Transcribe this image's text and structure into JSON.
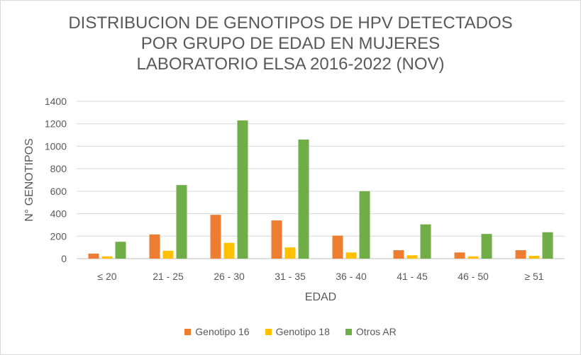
{
  "chart_data": {
    "type": "bar",
    "title_lines": [
      "DISTRIBUCION DE GENOTIPOS DE HPV DETECTADOS",
      "POR GRUPO DE EDAD EN MUJERES",
      "LABORATORIO ELSA 2016-2022 (NOV)"
    ],
    "xlabel": "EDAD",
    "ylabel": "N° GENOTIPOS",
    "ylim": [
      0,
      1400
    ],
    "yticks": [
      "0",
      "200",
      "400",
      "600",
      "800",
      "1000",
      "1200",
      "1400"
    ],
    "grid": true,
    "legend_position": "bottom",
    "categories": [
      "≤ 20",
      "21 - 25",
      "26 - 30",
      "31 - 35",
      "36 - 40",
      "41 - 45",
      "46 - 50",
      "≥ 51"
    ],
    "series": [
      {
        "name": "Genotipo 16",
        "color": "#ED7D31",
        "values": [
          45,
          215,
          390,
          340,
          205,
          75,
          55,
          75
        ]
      },
      {
        "name": "Genotipo 18",
        "color": "#FFC000",
        "values": [
          20,
          70,
          140,
          100,
          55,
          30,
          20,
          25
        ]
      },
      {
        "name": "Otros AR",
        "color": "#70AD47",
        "values": [
          150,
          655,
          1230,
          1060,
          600,
          305,
          220,
          235
        ]
      }
    ]
  }
}
